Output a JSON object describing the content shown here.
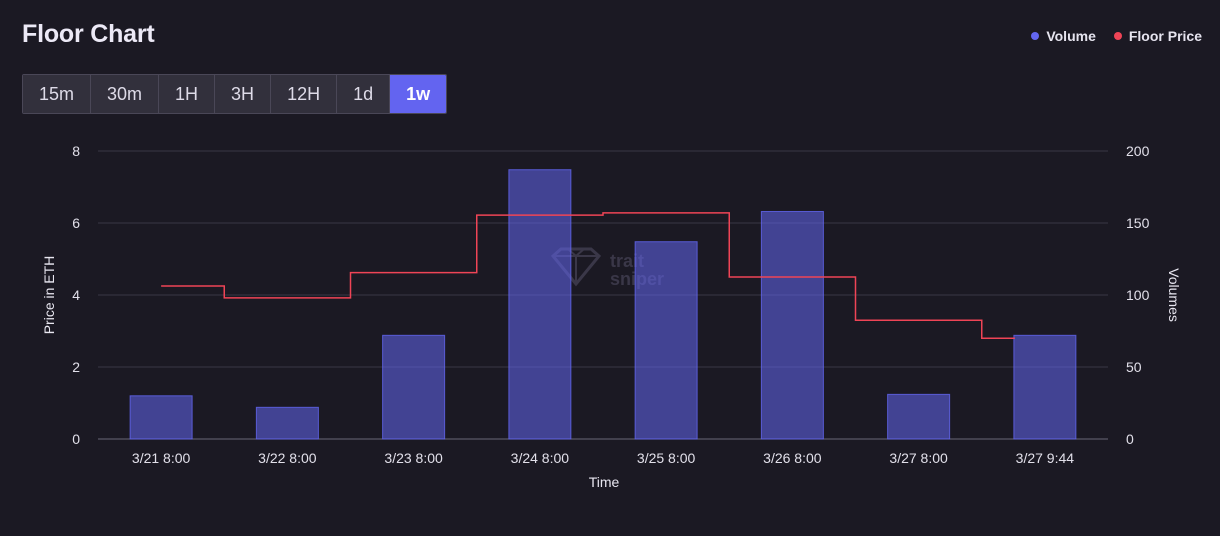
{
  "header": {
    "title": "Floor Chart"
  },
  "legend": [
    {
      "label": "Volume",
      "color": "#6366f1"
    },
    {
      "label": "Floor Price",
      "color": "#ef4456"
    }
  ],
  "tabs": [
    {
      "label": "15m",
      "active": false
    },
    {
      "label": "30m",
      "active": false
    },
    {
      "label": "1H",
      "active": false
    },
    {
      "label": "3H",
      "active": false
    },
    {
      "label": "12H",
      "active": false
    },
    {
      "label": "1d",
      "active": false
    },
    {
      "label": "1w",
      "active": true
    }
  ],
  "watermark": [
    "trait",
    "sniper"
  ],
  "chart_data": {
    "type": "bar",
    "xlabel": "Time",
    "ylabel": "Price in ETH",
    "ylabel_right": "Volumes",
    "categories": [
      "3/21 8:00",
      "3/22 8:00",
      "3/23 8:00",
      "3/24 8:00",
      "3/25 8:00",
      "3/26 8:00",
      "3/27 8:00",
      "3/27 9:44"
    ],
    "ylim": [
      0,
      8
    ],
    "yticks": [
      0,
      2,
      4,
      6,
      8
    ],
    "ylim_right": [
      0,
      200
    ],
    "yticks_right": [
      0,
      50,
      100,
      150,
      200
    ],
    "grid": true,
    "legend_position": "top-right",
    "series": [
      {
        "name": "Volume",
        "type": "bar",
        "axis": "right",
        "color": "#6366f1",
        "values": [
          30,
          22,
          72,
          187,
          137,
          158,
          31,
          72
        ]
      },
      {
        "name": "Floor Price",
        "type": "step-line",
        "axis": "left",
        "color": "#ef4456",
        "values": [
          4.25,
          3.92,
          4.62,
          6.22,
          6.28,
          4.5,
          3.3,
          2.8
        ]
      }
    ]
  }
}
